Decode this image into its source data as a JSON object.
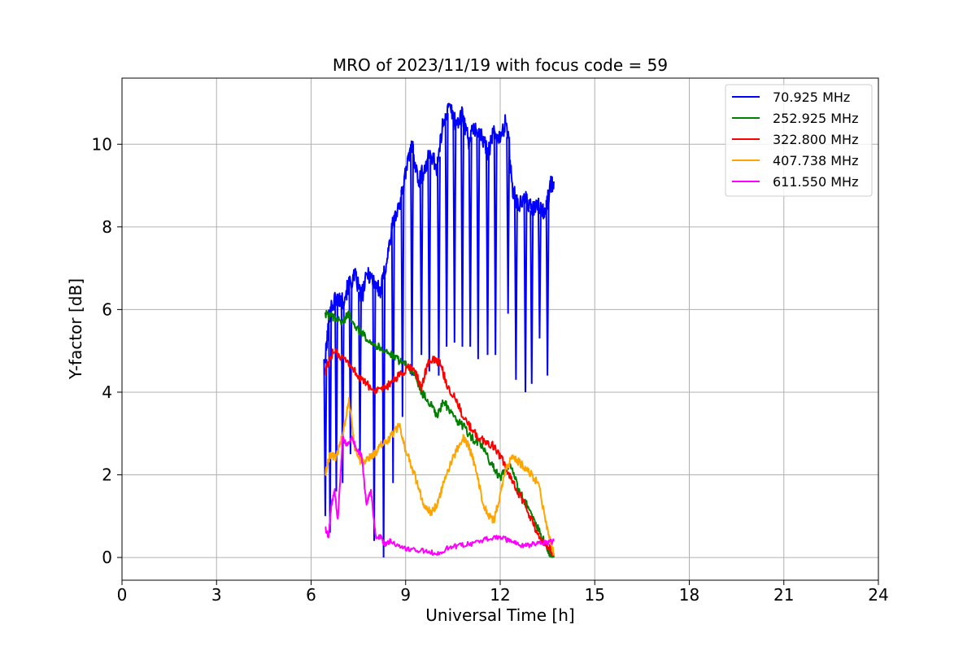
{
  "chart_data": {
    "type": "line",
    "title": "MRO of 2023/11/19 with focus code = 59",
    "xlabel": "Universal Time [h]",
    "ylabel": "Y-factor [dB]",
    "xlim": [
      0,
      24
    ],
    "ylim": [
      -0.55,
      11.6
    ],
    "xticks": [
      0,
      3,
      6,
      9,
      12,
      15,
      18,
      21,
      24
    ],
    "yticks": [
      0,
      2,
      4,
      6,
      8,
      10
    ],
    "grid": true,
    "legend_position": "top-right",
    "series": [
      {
        "name": "70.925 MHz",
        "legend_label": " 70.925 MHz",
        "color": "#0000ff",
        "x": [
          6.45,
          6.6,
          6.8,
          7.0,
          7.2,
          7.4,
          7.6,
          7.8,
          8.0,
          8.2,
          8.4,
          8.6,
          8.8,
          9.0,
          9.2,
          9.4,
          9.6,
          9.8,
          10.0,
          10.2,
          10.4,
          10.6,
          10.8,
          11.0,
          11.2,
          11.4,
          11.6,
          11.8,
          12.0,
          12.2,
          12.4,
          12.6,
          12.8,
          13.0,
          13.2,
          13.4,
          13.6,
          13.7
        ],
        "y": [
          4.8,
          6.0,
          6.3,
          6.2,
          6.6,
          6.8,
          6.3,
          6.9,
          6.7,
          6.4,
          7.2,
          8.1,
          8.5,
          9.3,
          10.0,
          9.1,
          9.4,
          9.8,
          9.4,
          10.6,
          10.9,
          10.5,
          10.7,
          10.1,
          10.4,
          10.2,
          9.8,
          10.3,
          10.1,
          10.6,
          8.9,
          8.5,
          8.7,
          8.4,
          8.5,
          8.3,
          9.0,
          9.1
        ],
        "dips": [
          {
            "x": 6.45,
            "y": 1.0
          },
          {
            "x": 6.6,
            "y": 0.6
          },
          {
            "x": 6.8,
            "y": 1.6
          },
          {
            "x": 7.0,
            "y": 1.8
          },
          {
            "x": 7.25,
            "y": 2.5
          },
          {
            "x": 7.55,
            "y": 2.4
          },
          {
            "x": 8.0,
            "y": 0.4
          },
          {
            "x": 8.3,
            "y": 0.0
          },
          {
            "x": 8.6,
            "y": 1.8
          },
          {
            "x": 8.9,
            "y": 3.4
          },
          {
            "x": 9.2,
            "y": 4.4
          },
          {
            "x": 9.5,
            "y": 4.9
          },
          {
            "x": 9.75,
            "y": 4.5
          },
          {
            "x": 10.05,
            "y": 4.4
          },
          {
            "x": 10.3,
            "y": 5.1
          },
          {
            "x": 10.55,
            "y": 5.2
          },
          {
            "x": 10.8,
            "y": 5.1
          },
          {
            "x": 11.05,
            "y": 5.1
          },
          {
            "x": 11.3,
            "y": 4.8
          },
          {
            "x": 11.6,
            "y": 4.9
          },
          {
            "x": 11.85,
            "y": 4.9
          },
          {
            "x": 12.25,
            "y": 5.9
          },
          {
            "x": 12.5,
            "y": 4.3
          },
          {
            "x": 12.8,
            "y": 4.0
          },
          {
            "x": 13.0,
            "y": 4.2
          },
          {
            "x": 13.25,
            "y": 5.3
          },
          {
            "x": 13.5,
            "y": 4.4
          }
        ]
      },
      {
        "name": "252.925 MHz",
        "legend_label": "252.925 MHz",
        "color": "#008000",
        "x": [
          6.45,
          6.7,
          7.0,
          7.2,
          7.5,
          7.8,
          8.1,
          8.4,
          8.7,
          9.0,
          9.3,
          9.5,
          9.8,
          10.0,
          10.2,
          10.5,
          10.8,
          11.1,
          11.4,
          11.7,
          12.0,
          12.3,
          12.6,
          12.9,
          13.2,
          13.5,
          13.7
        ],
        "y": [
          5.9,
          5.8,
          5.7,
          5.9,
          5.5,
          5.3,
          5.1,
          5.0,
          4.8,
          4.7,
          4.4,
          4.0,
          3.7,
          3.4,
          3.8,
          3.4,
          3.2,
          2.9,
          2.7,
          2.3,
          1.9,
          2.3,
          1.6,
          1.2,
          0.7,
          0.2,
          0.0
        ]
      },
      {
        "name": "322.800 MHz",
        "legend_label": "322.800 MHz",
        "color": "#ff0000",
        "x": [
          6.45,
          6.7,
          7.0,
          7.3,
          7.6,
          7.9,
          8.2,
          8.5,
          8.8,
          9.1,
          9.3,
          9.5,
          9.7,
          9.9,
          10.1,
          10.3,
          10.6,
          10.9,
          11.2,
          11.5,
          11.8,
          12.1,
          12.4,
          12.7,
          13.0,
          13.3,
          13.5,
          13.7
        ],
        "y": [
          4.5,
          5.0,
          4.8,
          4.6,
          4.3,
          4.1,
          4.0,
          4.2,
          4.4,
          4.6,
          4.5,
          4.1,
          4.7,
          4.8,
          4.7,
          4.2,
          3.8,
          3.3,
          3.0,
          2.8,
          2.7,
          2.3,
          1.8,
          1.4,
          0.9,
          0.4,
          0.3,
          0.1
        ]
      },
      {
        "name": "407.738 MHz",
        "legend_label": "407.738 MHz",
        "color": "#ffa500",
        "x": [
          6.45,
          6.6,
          6.8,
          7.0,
          7.2,
          7.4,
          7.6,
          7.8,
          8.0,
          8.2,
          8.5,
          8.8,
          9.0,
          9.2,
          9.4,
          9.6,
          9.8,
          10.0,
          10.2,
          10.5,
          10.8,
          11.0,
          11.2,
          11.4,
          11.6,
          11.8,
          12.0,
          12.2,
          12.4,
          12.6,
          12.9,
          13.2,
          13.5,
          13.7
        ],
        "y": [
          2.0,
          2.5,
          2.4,
          3.0,
          3.8,
          2.6,
          2.3,
          2.4,
          2.5,
          2.7,
          2.9,
          3.2,
          2.6,
          2.2,
          1.7,
          1.2,
          1.1,
          1.3,
          1.8,
          2.4,
          2.9,
          2.7,
          2.2,
          1.5,
          1.0,
          0.9,
          1.5,
          2.2,
          2.4,
          2.3,
          2.1,
          1.8,
          0.7,
          0.1
        ]
      },
      {
        "name": "611.550 MHz",
        "legend_label": "611.550 MHz",
        "color": "#ff00ff",
        "x": [
          6.45,
          6.55,
          6.65,
          6.75,
          6.85,
          7.0,
          7.15,
          7.3,
          7.45,
          7.6,
          7.75,
          7.9,
          8.05,
          8.2,
          8.35,
          8.5,
          8.8,
          9.2,
          9.6,
          10.0,
          10.4,
          10.8,
          11.2,
          11.6,
          12.0,
          12.3,
          12.6,
          12.9,
          13.2,
          13.5,
          13.7
        ],
        "y": [
          0.7,
          0.5,
          1.3,
          1.6,
          0.9,
          2.9,
          2.7,
          2.9,
          2.6,
          2.5,
          1.3,
          1.6,
          0.5,
          0.5,
          0.3,
          0.4,
          0.25,
          0.2,
          0.15,
          0.1,
          0.25,
          0.3,
          0.35,
          0.45,
          0.5,
          0.4,
          0.3,
          0.3,
          0.35,
          0.35,
          0.4
        ]
      }
    ]
  }
}
